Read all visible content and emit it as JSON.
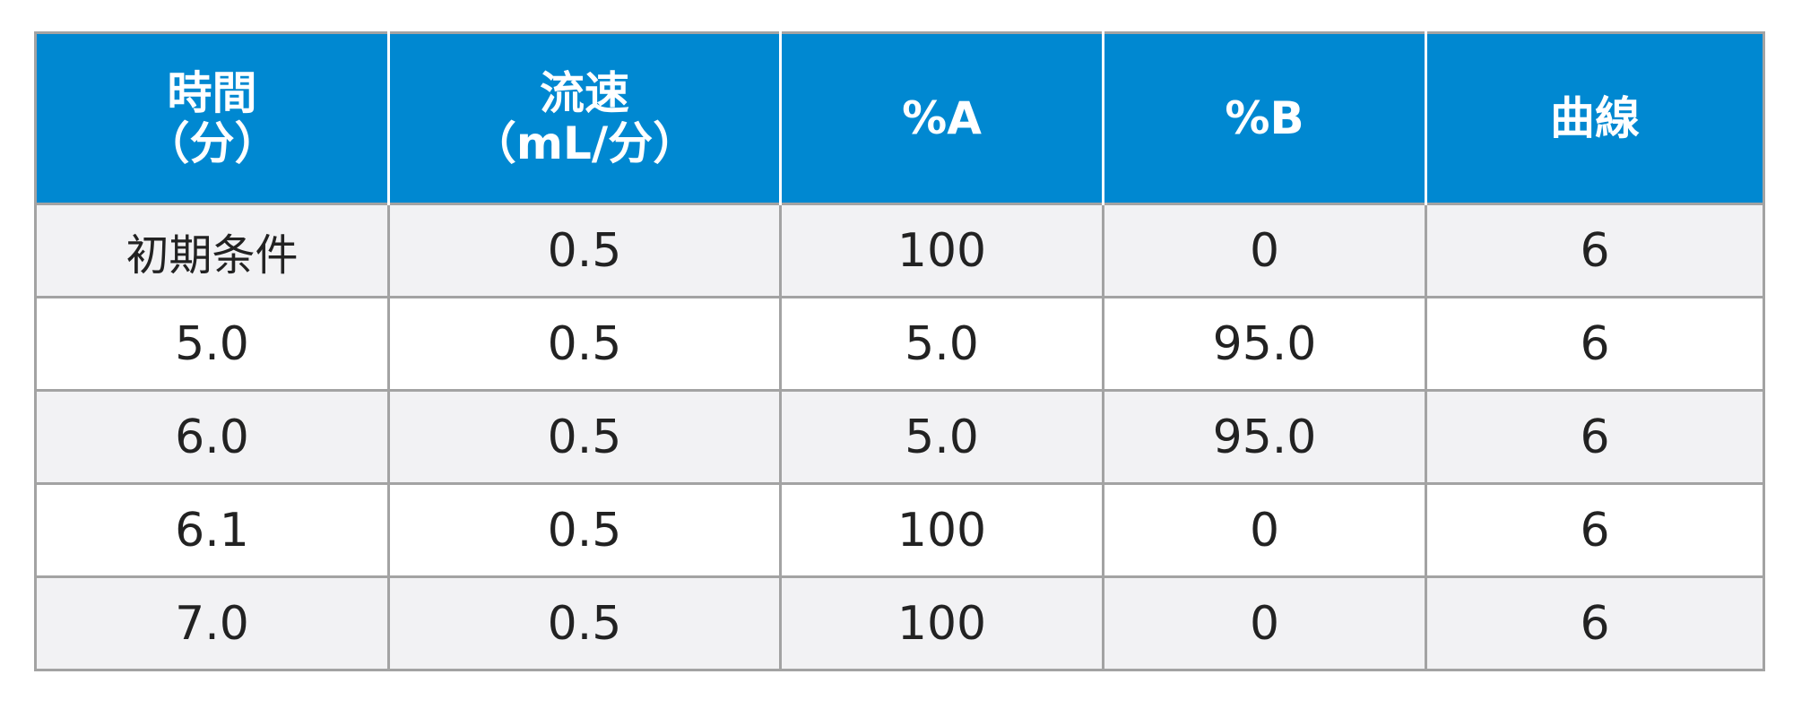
{
  "table": {
    "headers": [
      "時間\n（分）",
      "流速\n（mL/分）",
      "%A",
      "%B",
      "曲線"
    ],
    "rows": [
      [
        "初期条件",
        "0.5",
        "100",
        "0",
        "6"
      ],
      [
        "5.0",
        "0.5",
        "5.0",
        "95.0",
        "6"
      ],
      [
        "6.0",
        "0.5",
        "5.0",
        "95.0",
        "6"
      ],
      [
        "6.1",
        "0.5",
        "100",
        "0",
        "6"
      ],
      [
        "7.0",
        "0.5",
        "100",
        "0",
        "6"
      ]
    ]
  },
  "colors": {
    "header_background": "#0088d1",
    "header_text": "#ffffff",
    "row_shade": "#f2f2f4",
    "grid_line": "#a3a3a3"
  }
}
